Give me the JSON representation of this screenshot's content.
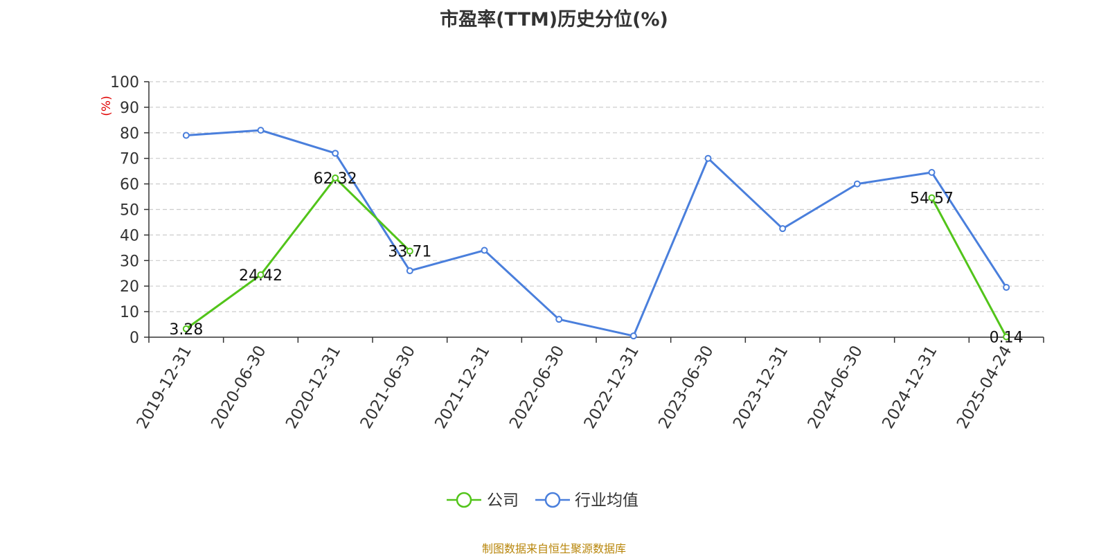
{
  "chart_data": {
    "type": "line",
    "title": "市盈率(TTM)历史分位(%)",
    "ylabel": "(%)",
    "xlabel": "",
    "ylim": [
      0,
      100
    ],
    "yticks": [
      "0",
      "10",
      "20",
      "30",
      "40",
      "50",
      "60",
      "70",
      "80",
      "90",
      "100"
    ],
    "categories": [
      "2019-12-31",
      "2020-06-30",
      "2020-12-31",
      "2021-06-30",
      "2021-12-31",
      "2022-06-30",
      "2022-12-31",
      "2023-06-30",
      "2023-12-31",
      "2024-06-30",
      "2024-12-31",
      "2025-04-24"
    ],
    "grid": true,
    "legend_position": "bottom",
    "series": [
      {
        "name": "公司",
        "color": "#52c41a",
        "values": [
          3.28,
          24.42,
          62.32,
          33.71,
          null,
          null,
          null,
          null,
          null,
          null,
          54.57,
          0.14
        ],
        "labels": [
          "3.28",
          "24.42",
          "62.32",
          "33.71",
          null,
          null,
          null,
          null,
          null,
          null,
          "54.57",
          "0.14"
        ]
      },
      {
        "name": "行业均值",
        "color": "#4a7fdc",
        "values": [
          79,
          81,
          72,
          26,
          34,
          7,
          0.5,
          70,
          42.5,
          60,
          64.5,
          19.5
        ]
      }
    ]
  },
  "source_note": "制图数据来自恒生聚源数据库"
}
